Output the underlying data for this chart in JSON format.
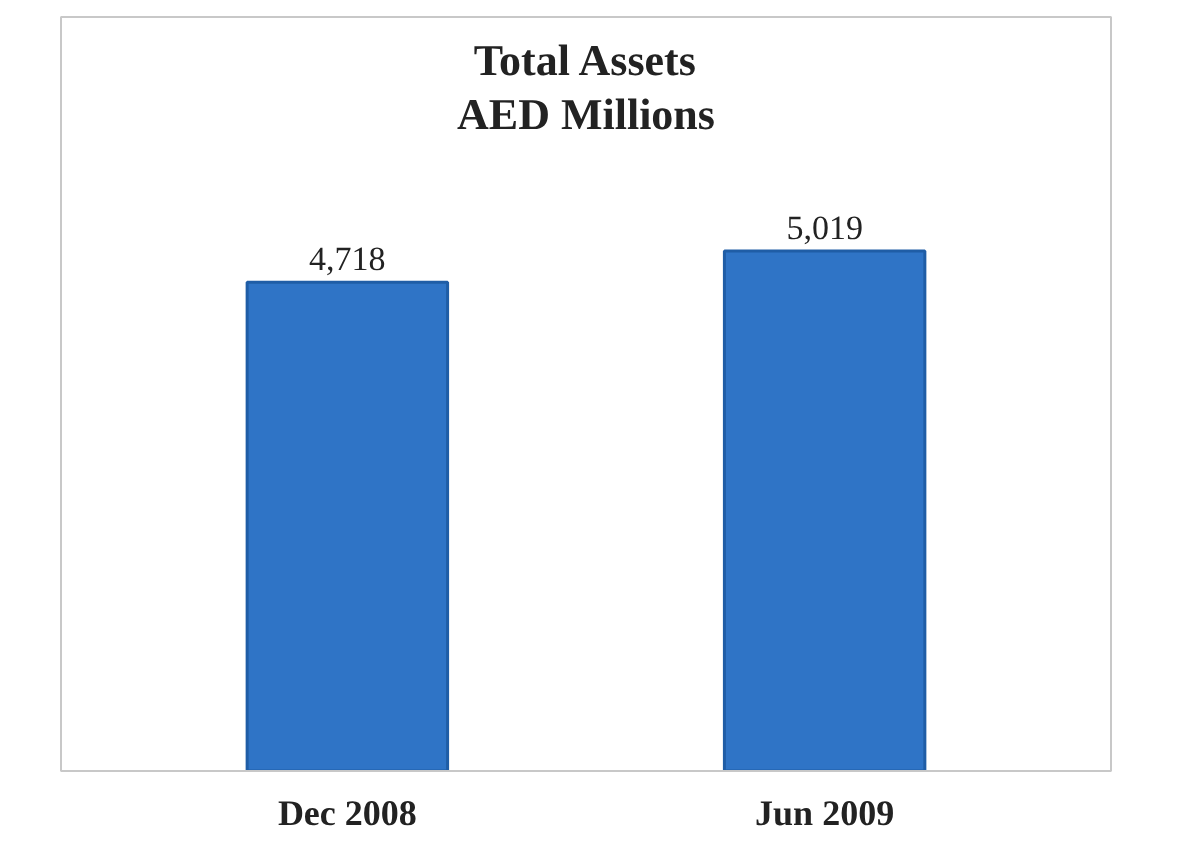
{
  "chart_data": {
    "type": "bar",
    "title": "Total Assets\nAED Millions",
    "categories": [
      "Dec 2008",
      "Jun 2009"
    ],
    "values": [
      4718,
      5019
    ],
    "color": "#2f74c6",
    "value_labels": [
      "4,718",
      "5,019"
    ],
    "grid": false
  }
}
